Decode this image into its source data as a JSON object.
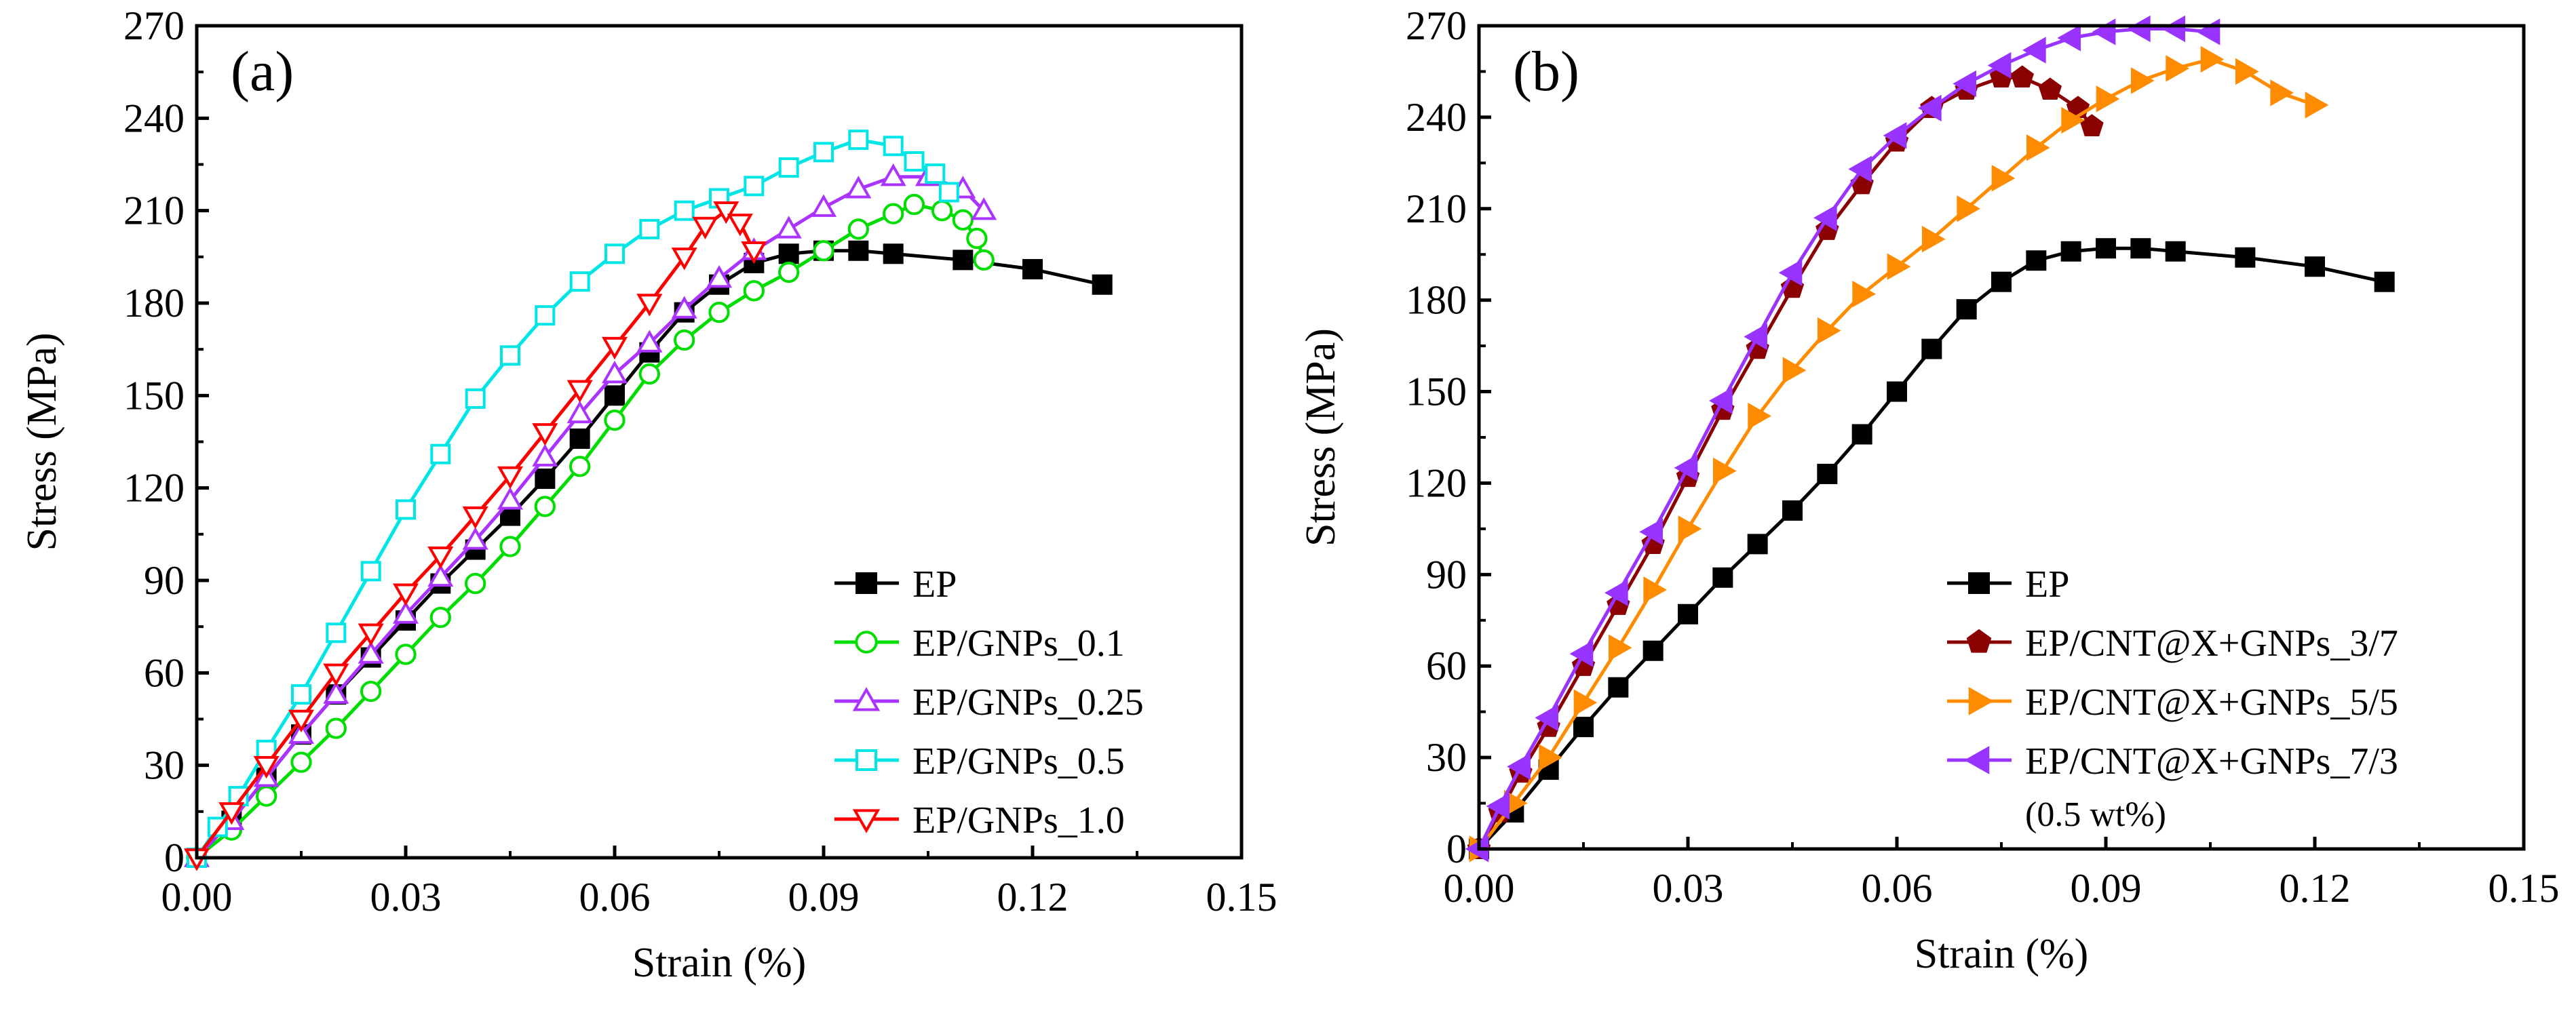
{
  "chart_data": [
    {
      "panel_label": "(a)",
      "type": "line",
      "xlabel": "Strain (%)",
      "ylabel": "Stress (MPa)",
      "xlim": [
        0.0,
        0.15
      ],
      "ylim": [
        0,
        270
      ],
      "xticks": [
        "0.00",
        "0.03",
        "0.06",
        "0.09",
        "0.12",
        "0.15"
      ],
      "xtick_values": [
        0.0,
        0.03,
        0.06,
        0.09,
        0.12,
        0.15
      ],
      "yticks": [
        "0",
        "30",
        "60",
        "90",
        "120",
        "150",
        "180",
        "210",
        "240",
        "270"
      ],
      "ytick_values": [
        0,
        30,
        60,
        90,
        120,
        150,
        180,
        210,
        240,
        270
      ],
      "legend_position": "bottom-right",
      "series": [
        {
          "name": "EP",
          "color": "#000000",
          "marker": "square",
          "filled": true,
          "points": [
            [
              0,
              0
            ],
            [
              0.005,
              12
            ],
            [
              0.01,
              26
            ],
            [
              0.015,
              40
            ],
            [
              0.02,
              53
            ],
            [
              0.025,
              65
            ],
            [
              0.03,
              77
            ],
            [
              0.035,
              89
            ],
            [
              0.04,
              100
            ],
            [
              0.045,
              111
            ],
            [
              0.05,
              123
            ],
            [
              0.055,
              136
            ],
            [
              0.06,
              150
            ],
            [
              0.065,
              164
            ],
            [
              0.07,
              177
            ],
            [
              0.075,
              186
            ],
            [
              0.08,
              193
            ],
            [
              0.085,
              196
            ],
            [
              0.09,
              197
            ],
            [
              0.095,
              197
            ],
            [
              0.1,
              196
            ],
            [
              0.11,
              194
            ],
            [
              0.12,
              191
            ],
            [
              0.13,
              186
            ]
          ]
        },
        {
          "name": "EP/GNPs_0.1",
          "color": "#00dd00",
          "marker": "circle",
          "filled": false,
          "points": [
            [
              0,
              0
            ],
            [
              0.005,
              9
            ],
            [
              0.01,
              20
            ],
            [
              0.015,
              31
            ],
            [
              0.02,
              42
            ],
            [
              0.025,
              54
            ],
            [
              0.03,
              66
            ],
            [
              0.035,
              78
            ],
            [
              0.04,
              89
            ],
            [
              0.045,
              101
            ],
            [
              0.05,
              114
            ],
            [
              0.055,
              127
            ],
            [
              0.06,
              142
            ],
            [
              0.065,
              157
            ],
            [
              0.07,
              168
            ],
            [
              0.075,
              177
            ],
            [
              0.08,
              184
            ],
            [
              0.085,
              190
            ],
            [
              0.09,
              197
            ],
            [
              0.095,
              204
            ],
            [
              0.1,
              209
            ],
            [
              0.103,
              212
            ],
            [
              0.107,
              210
            ],
            [
              0.11,
              207
            ],
            [
              0.112,
              201
            ],
            [
              0.113,
              194
            ]
          ]
        },
        {
          "name": "EP/GNPs_0.25",
          "color": "#aa33ff",
          "marker": "triangle-up",
          "filled": false,
          "points": [
            [
              0,
              0
            ],
            [
              0.005,
              12
            ],
            [
              0.01,
              26
            ],
            [
              0.015,
              40
            ],
            [
              0.02,
              53
            ],
            [
              0.025,
              66
            ],
            [
              0.03,
              79
            ],
            [
              0.035,
              91
            ],
            [
              0.04,
              103
            ],
            [
              0.045,
              116
            ],
            [
              0.05,
              130
            ],
            [
              0.055,
              144
            ],
            [
              0.06,
              157
            ],
            [
              0.065,
              167
            ],
            [
              0.07,
              178
            ],
            [
              0.075,
              188
            ],
            [
              0.08,
              197
            ],
            [
              0.085,
              204
            ],
            [
              0.09,
              211
            ],
            [
              0.095,
              217
            ],
            [
              0.1,
              221
            ],
            [
              0.105,
              221
            ],
            [
              0.11,
              217
            ],
            [
              0.113,
              210
            ]
          ]
        },
        {
          "name": "EP/GNPs_0.5",
          "color": "#00e6e6",
          "marker": "square",
          "filled": false,
          "points": [
            [
              0,
              0
            ],
            [
              0.003,
              10
            ],
            [
              0.006,
              20
            ],
            [
              0.01,
              35
            ],
            [
              0.015,
              53
            ],
            [
              0.02,
              73
            ],
            [
              0.025,
              93
            ],
            [
              0.03,
              113
            ],
            [
              0.035,
              131
            ],
            [
              0.04,
              149
            ],
            [
              0.045,
              163
            ],
            [
              0.05,
              176
            ],
            [
              0.055,
              187
            ],
            [
              0.06,
              196
            ],
            [
              0.065,
              204
            ],
            [
              0.07,
              210
            ],
            [
              0.075,
              214
            ],
            [
              0.08,
              218
            ],
            [
              0.085,
              224
            ],
            [
              0.09,
              229
            ],
            [
              0.095,
              233
            ],
            [
              0.1,
              231
            ],
            [
              0.103,
              226
            ],
            [
              0.106,
              222
            ],
            [
              0.108,
              216
            ]
          ]
        },
        {
          "name": "EP/GNPs_1.0",
          "color": "#ff0000",
          "marker": "triangle-down",
          "filled": false,
          "points": [
            [
              0,
              0
            ],
            [
              0.005,
              15
            ],
            [
              0.01,
              30
            ],
            [
              0.015,
              45
            ],
            [
              0.02,
              60
            ],
            [
              0.025,
              73
            ],
            [
              0.03,
              86
            ],
            [
              0.035,
              98
            ],
            [
              0.04,
              111
            ],
            [
              0.045,
              124
            ],
            [
              0.05,
              138
            ],
            [
              0.055,
              152
            ],
            [
              0.06,
              166
            ],
            [
              0.065,
              180
            ],
            [
              0.07,
              195
            ],
            [
              0.073,
              205
            ],
            [
              0.076,
              210
            ],
            [
              0.078,
              206
            ],
            [
              0.08,
              197
            ]
          ]
        }
      ]
    },
    {
      "panel_label": "(b)",
      "type": "line",
      "xlabel": "Strain (%)",
      "ylabel": "Stress (MPa)",
      "xlim": [
        0.0,
        0.15
      ],
      "ylim": [
        0,
        270
      ],
      "xticks": [
        "0.00",
        "0.03",
        "0.06",
        "0.09",
        "0.12",
        "0.15"
      ],
      "xtick_values": [
        0.0,
        0.03,
        0.06,
        0.09,
        0.12,
        0.15
      ],
      "yticks": [
        "0",
        "30",
        "60",
        "90",
        "120",
        "150",
        "180",
        "210",
        "240",
        "270"
      ],
      "ytick_values": [
        0,
        30,
        60,
        90,
        120,
        150,
        180,
        210,
        240,
        270
      ],
      "legend_position": "bottom-right",
      "legend_note": "(0.5 wt%)",
      "series": [
        {
          "name": "EP",
          "color": "#000000",
          "marker": "square",
          "filled": true,
          "points": [
            [
              0,
              0
            ],
            [
              0.005,
              12
            ],
            [
              0.01,
              26
            ],
            [
              0.015,
              40
            ],
            [
              0.02,
              53
            ],
            [
              0.025,
              65
            ],
            [
              0.03,
              77
            ],
            [
              0.035,
              89
            ],
            [
              0.04,
              100
            ],
            [
              0.045,
              111
            ],
            [
              0.05,
              123
            ],
            [
              0.055,
              136
            ],
            [
              0.06,
              150
            ],
            [
              0.065,
              164
            ],
            [
              0.07,
              177
            ],
            [
              0.075,
              186
            ],
            [
              0.08,
              193
            ],
            [
              0.085,
              196
            ],
            [
              0.09,
              197
            ],
            [
              0.095,
              197
            ],
            [
              0.1,
              196
            ],
            [
              0.11,
              194
            ],
            [
              0.12,
              191
            ],
            [
              0.13,
              186
            ]
          ]
        },
        {
          "name": "EP/CNT@X+GNPs_3/7",
          "color": "#8b0000",
          "marker": "pentagon",
          "filled": true,
          "points": [
            [
              0,
              0
            ],
            [
              0.003,
              12
            ],
            [
              0.006,
              25
            ],
            [
              0.01,
              40
            ],
            [
              0.015,
              60
            ],
            [
              0.02,
              80
            ],
            [
              0.025,
              100
            ],
            [
              0.03,
              122
            ],
            [
              0.035,
              144
            ],
            [
              0.04,
              164
            ],
            [
              0.045,
              184
            ],
            [
              0.05,
              203
            ],
            [
              0.055,
              218
            ],
            [
              0.06,
              232
            ],
            [
              0.065,
              243
            ],
            [
              0.07,
              249
            ],
            [
              0.075,
              253
            ],
            [
              0.078,
              253
            ],
            [
              0.082,
              249
            ],
            [
              0.086,
              243
            ],
            [
              0.088,
              237
            ]
          ]
        },
        {
          "name": "EP/CNT@X+GNPs_5/5",
          "color": "#ff8c00",
          "marker": "triangle-right",
          "filled": true,
          "points": [
            [
              0,
              0
            ],
            [
              0.005,
              15
            ],
            [
              0.01,
              30
            ],
            [
              0.015,
              48
            ],
            [
              0.02,
              66
            ],
            [
              0.025,
              85
            ],
            [
              0.03,
              105
            ],
            [
              0.035,
              124
            ],
            [
              0.04,
              142
            ],
            [
              0.045,
              157
            ],
            [
              0.05,
              170
            ],
            [
              0.055,
              182
            ],
            [
              0.06,
              191
            ],
            [
              0.065,
              200
            ],
            [
              0.07,
              210
            ],
            [
              0.075,
              220
            ],
            [
              0.08,
              230
            ],
            [
              0.085,
              239
            ],
            [
              0.09,
              246
            ],
            [
              0.095,
              252
            ],
            [
              0.1,
              256
            ],
            [
              0.105,
              259
            ],
            [
              0.11,
              255
            ],
            [
              0.115,
              248
            ],
            [
              0.12,
              244
            ]
          ]
        },
        {
          "name": "EP/CNT@X+GNPs_7/3",
          "color": "#9933ff",
          "marker": "triangle-left",
          "filled": true,
          "points": [
            [
              0,
              0
            ],
            [
              0.003,
              14
            ],
            [
              0.006,
              27
            ],
            [
              0.01,
              43
            ],
            [
              0.015,
              64
            ],
            [
              0.02,
              84
            ],
            [
              0.025,
              104
            ],
            [
              0.03,
              125
            ],
            [
              0.035,
              147
            ],
            [
              0.04,
              168
            ],
            [
              0.045,
              189
            ],
            [
              0.05,
              207
            ],
            [
              0.055,
              223
            ],
            [
              0.06,
              234
            ],
            [
              0.065,
              243
            ],
            [
              0.07,
              251
            ],
            [
              0.075,
              257
            ],
            [
              0.08,
              262
            ],
            [
              0.085,
              266
            ],
            [
              0.09,
              268
            ],
            [
              0.095,
              269
            ],
            [
              0.1,
              269
            ],
            [
              0.105,
              268
            ]
          ]
        }
      ]
    }
  ]
}
